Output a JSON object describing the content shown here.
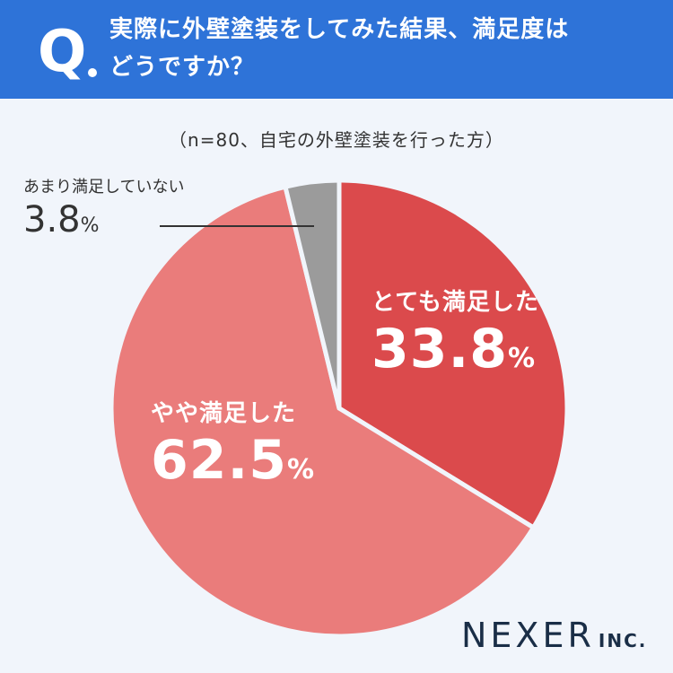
{
  "header": {
    "badge_letter": "Q",
    "title_line1": "実際に外壁塗装をしてみた結果、満足度は",
    "title_line2": "どうですか？"
  },
  "note": "（n=80、自宅の外壁塗装を行った方）",
  "colors": {
    "header_bg": "#2e73d8",
    "slice_very": "#db4a4c",
    "slice_somewhat": "#ea7c7b",
    "slice_not": "#9b9b9b"
  },
  "chart_data": {
    "type": "pie",
    "start": "12 o'clock, clockwise",
    "slices": [
      {
        "label": "とても満足した",
        "value": 33.8,
        "display": "33.8",
        "color": "#db4a4c"
      },
      {
        "label": "やや満足した",
        "value": 62.5,
        "display": "62.5",
        "color": "#ea7c7b"
      },
      {
        "label": "あまり満足していない",
        "value": 3.8,
        "display": "3.8",
        "color": "#9b9b9b"
      }
    ],
    "unit": "%"
  },
  "logo": {
    "main": "NEXER",
    "sub": "INC."
  }
}
